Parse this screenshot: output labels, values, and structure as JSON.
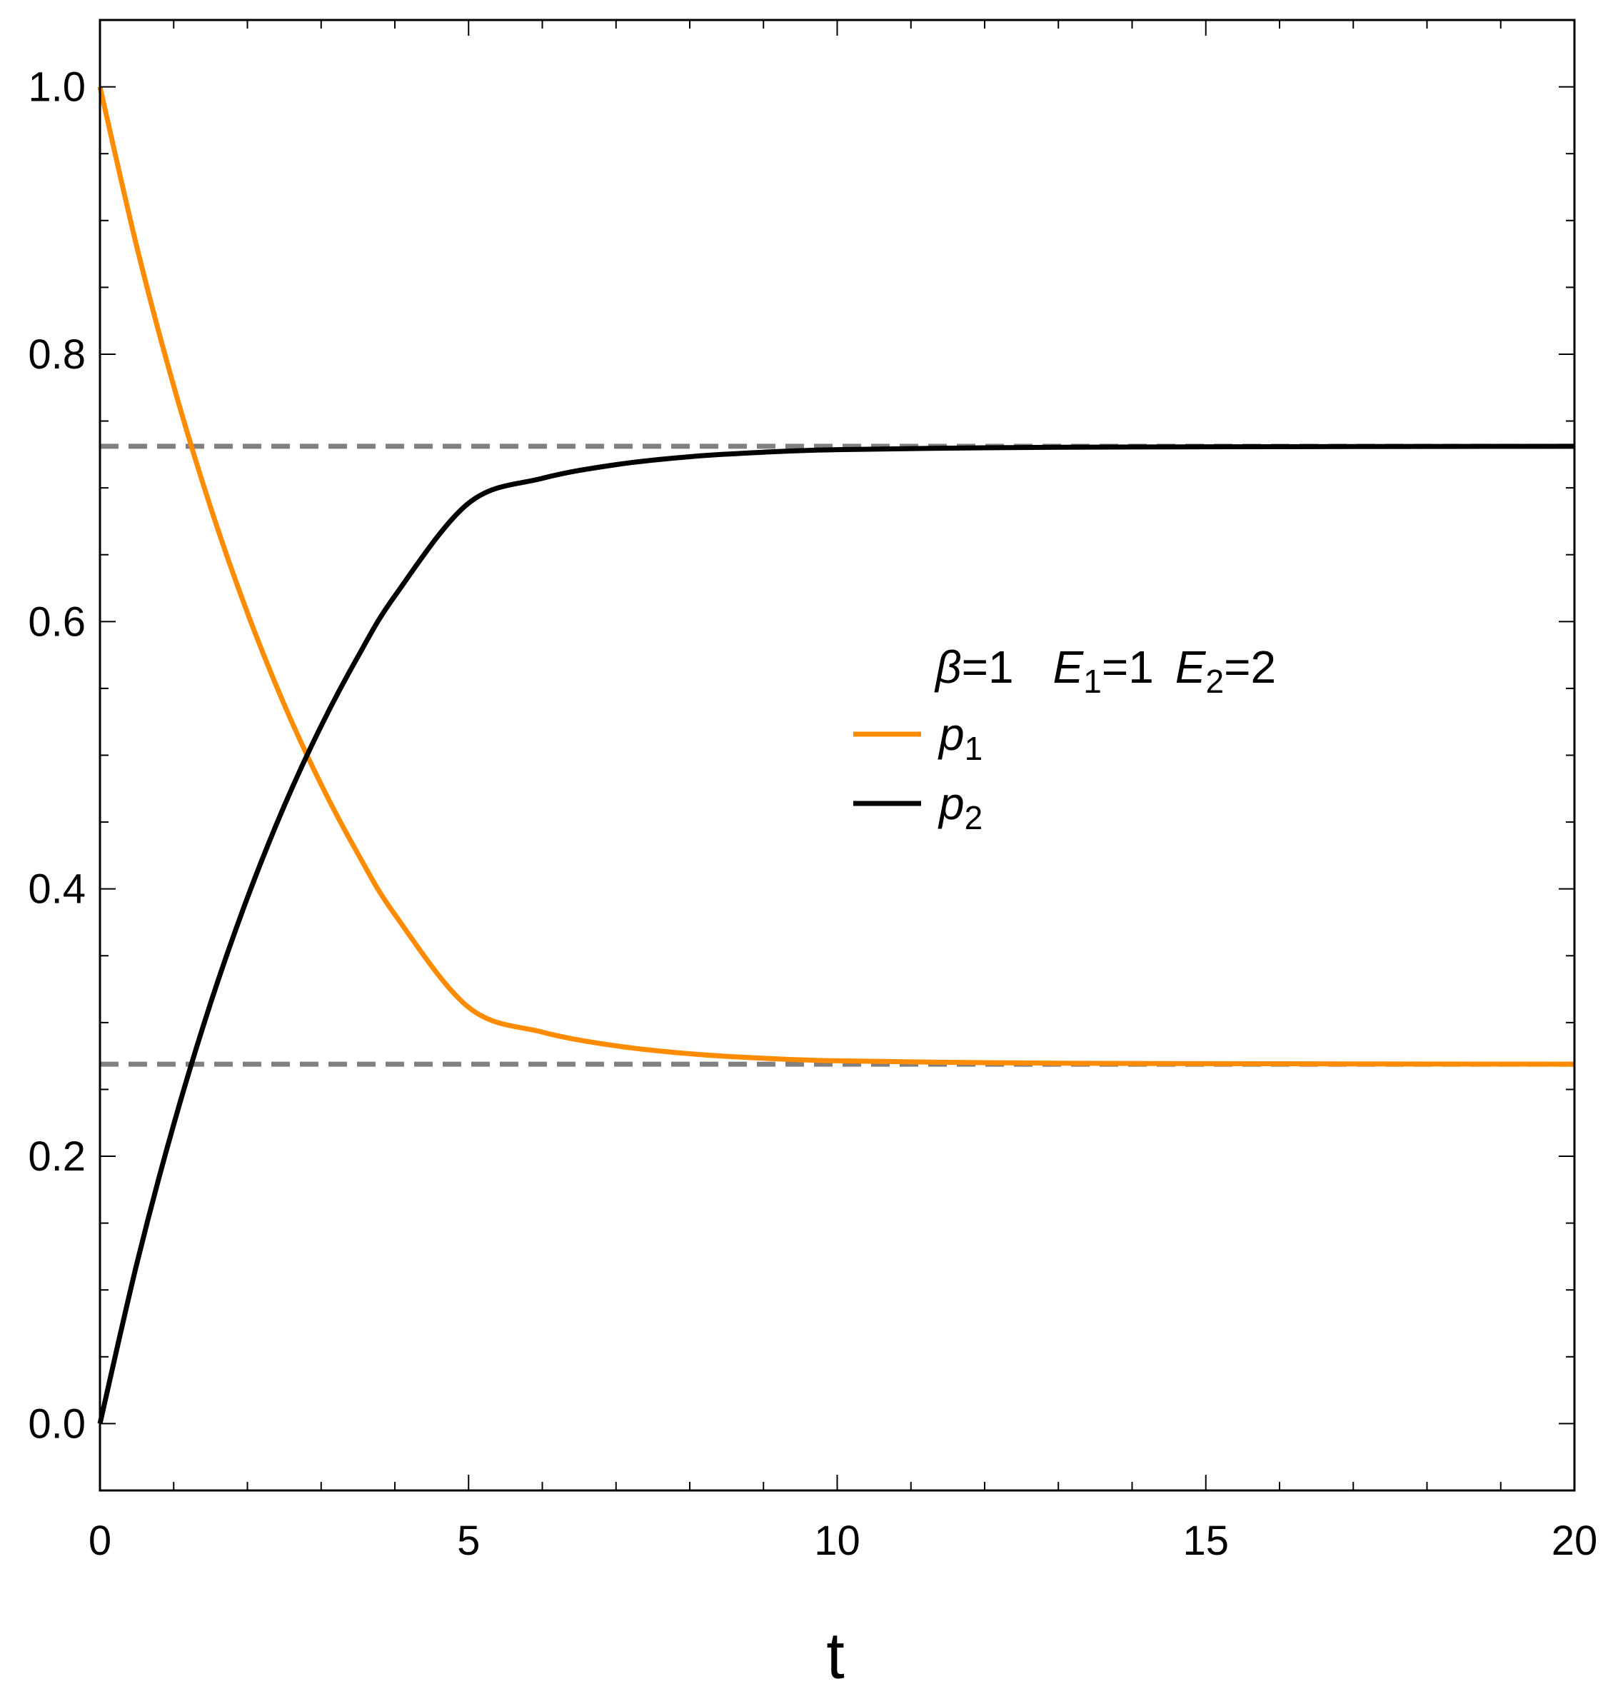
{
  "chart_data": {
    "type": "line",
    "xlabel": "t",
    "ylabel": "",
    "xlim": [
      0,
      20
    ],
    "ylim": [
      -0.05,
      1.05
    ],
    "x_ticks": [
      0,
      5,
      10,
      15,
      20
    ],
    "x_tick_labels": [
      "0",
      "5",
      "10",
      "15",
      "20"
    ],
    "y_ticks": [
      0.0,
      0.2,
      0.4,
      0.6,
      0.8,
      1.0
    ],
    "y_tick_labels": [
      "0.0",
      "0.2",
      "0.4",
      "0.6",
      "0.8",
      "1.0"
    ],
    "x_minor_step": 1,
    "y_minor_step": 0.05,
    "grid": false,
    "legend_position": "center-right",
    "annotation": {
      "beta_sym": "β",
      "beta_val": "=1",
      "e1_sym": "E",
      "e1_sub": "1",
      "e1_val": "=1",
      "e2_sym": "E",
      "e2_sub": "2",
      "e2_val": "=2"
    },
    "series": [
      {
        "name_sym": "p",
        "name_sub": "1",
        "color": "#ff8c00",
        "x": [
          0,
          0.5,
          1,
          1.5,
          2,
          2.5,
          3,
          3.5,
          4,
          5,
          6,
          7,
          8,
          9,
          10,
          12,
          14,
          16,
          18,
          20
        ],
        "y": [
          1.0,
          0.8804,
          0.7762,
          0.6855,
          0.6066,
          0.5379,
          0.4781,
          0.4261,
          0.3808,
          0.3114,
          0.2929,
          0.2826,
          0.2767,
          0.2733,
          0.2714,
          0.27,
          0.2694,
          0.2692,
          0.269,
          0.2689
        ]
      },
      {
        "name_sym": "p",
        "name_sub": "2",
        "color": "#000000",
        "x": [
          0,
          0.5,
          1,
          1.5,
          2,
          2.5,
          3,
          3.5,
          4,
          5,
          6,
          7,
          8,
          9,
          10,
          12,
          14,
          16,
          18,
          20
        ],
        "y": [
          0.0,
          0.1196,
          0.2238,
          0.3145,
          0.3934,
          0.4621,
          0.5219,
          0.5739,
          0.6192,
          0.6886,
          0.7071,
          0.7174,
          0.7233,
          0.7267,
          0.7286,
          0.73,
          0.7306,
          0.7308,
          0.731,
          0.7311
        ]
      }
    ],
    "reference_lines": [
      {
        "y": 0.7311,
        "color": "#808080",
        "style": "dashed"
      },
      {
        "y": 0.2689,
        "color": "#808080",
        "style": "dashed"
      }
    ]
  }
}
